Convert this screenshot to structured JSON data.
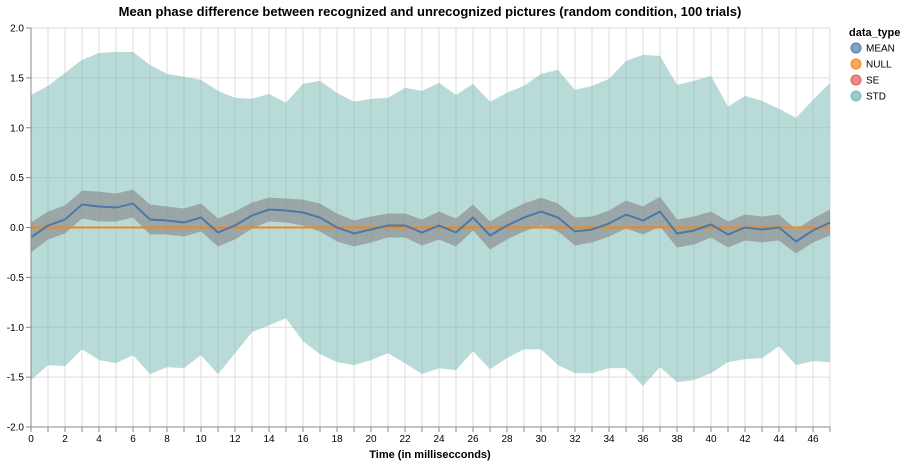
{
  "chart_data": {
    "type": "area",
    "title": "Mean phase difference between recognized and unrecognized pictures (random condition, 100 trials)",
    "xlabel": "Time (in millisecconds)",
    "ylabel": "",
    "xlim": [
      0,
      47
    ],
    "ylim": [
      -2.0,
      2.0
    ],
    "x_ticks": [
      "0",
      "2",
      "4",
      "6",
      "8",
      "10",
      "12",
      "14",
      "16",
      "18",
      "20",
      "22",
      "24",
      "26",
      "28",
      "30",
      "32",
      "34",
      "36",
      "38",
      "40",
      "42",
      "44",
      "46"
    ],
    "y_ticks": [
      "-2.0",
      "-1.5",
      "-1.0",
      "-0.5",
      "0.0",
      "0.5",
      "1.0",
      "1.5",
      "2.0"
    ],
    "grid": true,
    "legend": {
      "title": "data_type",
      "position": "top-right",
      "entries": [
        {
          "label": "MEAN",
          "color": "#4c78a8"
        },
        {
          "label": "NULL",
          "color": "#f58518"
        },
        {
          "label": "SE",
          "color": "#e45756"
        },
        {
          "label": "STD",
          "color": "#72b7b2"
        }
      ]
    },
    "x": [
      0,
      1,
      2,
      3,
      4,
      5,
      6,
      7,
      8,
      9,
      10,
      11,
      12,
      13,
      14,
      15,
      16,
      17,
      18,
      19,
      20,
      21,
      22,
      23,
      24,
      25,
      26,
      27,
      28,
      29,
      30,
      31,
      32,
      33,
      34,
      35,
      36,
      37,
      38,
      39,
      40,
      41,
      42,
      43,
      44,
      45,
      46,
      47
    ],
    "mean": [
      -0.1,
      0.02,
      0.08,
      0.23,
      0.21,
      0.2,
      0.24,
      0.08,
      0.07,
      0.05,
      0.1,
      -0.05,
      0.02,
      0.12,
      0.18,
      0.17,
      0.15,
      0.1,
      0.0,
      -0.06,
      -0.02,
      0.02,
      0.02,
      -0.05,
      0.02,
      -0.05,
      0.1,
      -0.08,
      0.02,
      0.1,
      0.16,
      0.1,
      -0.04,
      -0.02,
      0.04,
      0.13,
      0.07,
      0.16,
      -0.06,
      -0.03,
      0.03,
      -0.07,
      0.0,
      -0.02,
      0.0,
      -0.14,
      -0.03,
      0.05
    ],
    "null": [
      0,
      0,
      0,
      0,
      0,
      0,
      0,
      0,
      0,
      0,
      0,
      0,
      0,
      0,
      0,
      0,
      0,
      0,
      0,
      0,
      0,
      0,
      0,
      0,
      0,
      0,
      0,
      0,
      0,
      0,
      0,
      0,
      0,
      0,
      0,
      0,
      0,
      0,
      0,
      0,
      0,
      0,
      0,
      0,
      0,
      0,
      0,
      0
    ],
    "se": [
      0.15,
      0.14,
      0.14,
      0.14,
      0.15,
      0.14,
      0.14,
      0.15,
      0.14,
      0.14,
      0.14,
      0.14,
      0.14,
      0.13,
      0.12,
      0.12,
      0.13,
      0.14,
      0.14,
      0.13,
      0.13,
      0.12,
      0.12,
      0.13,
      0.14,
      0.14,
      0.13,
      0.14,
      0.14,
      0.14,
      0.14,
      0.14,
      0.14,
      0.13,
      0.13,
      0.14,
      0.14,
      0.15,
      0.14,
      0.14,
      0.13,
      0.13,
      0.13,
      0.13,
      0.13,
      0.12,
      0.12,
      0.13
    ],
    "std": [
      1.43,
      1.4,
      1.47,
      1.45,
      1.54,
      1.56,
      1.52,
      1.55,
      1.47,
      1.46,
      1.38,
      1.42,
      1.28,
      1.17,
      1.16,
      1.08,
      1.29,
      1.37,
      1.35,
      1.32,
      1.31,
      1.28,
      1.38,
      1.42,
      1.43,
      1.38,
      1.34,
      1.34,
      1.33,
      1.32,
      1.38,
      1.48,
      1.42,
      1.44,
      1.45,
      1.54,
      1.66,
      1.56,
      1.49,
      1.5,
      1.49,
      1.28,
      1.32,
      1.29,
      1.19,
      1.24,
      1.31,
      1.4
    ]
  }
}
